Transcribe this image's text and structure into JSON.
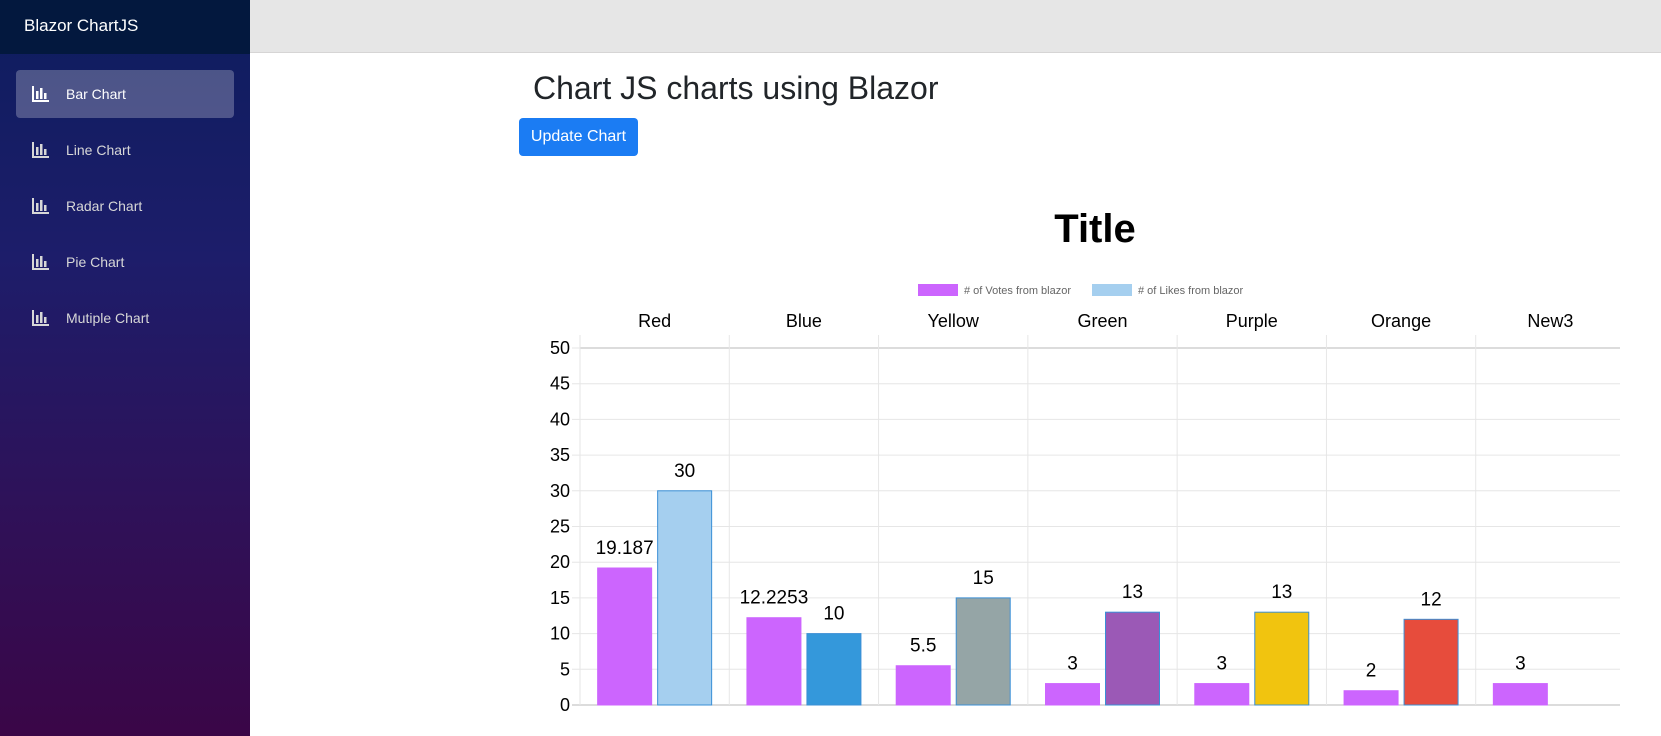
{
  "app": {
    "brand": "Blazor ChartJS"
  },
  "sidebar": {
    "items": [
      {
        "label": "Bar Chart",
        "icon": "bar-chart-icon",
        "active": true
      },
      {
        "label": "Line Chart",
        "icon": "bar-chart-icon",
        "active": false
      },
      {
        "label": "Radar Chart",
        "icon": "bar-chart-icon",
        "active": false
      },
      {
        "label": "Pie Chart",
        "icon": "bar-chart-icon",
        "active": false
      },
      {
        "label": "Mutiple Chart",
        "icon": "bar-chart-icon",
        "active": false
      }
    ]
  },
  "main": {
    "title": "Chart JS charts using Blazor",
    "update_button": "Update Chart"
  },
  "chart_data": {
    "type": "bar",
    "title": "Title",
    "categories": [
      "Red",
      "Blue",
      "Yellow",
      "Green",
      "Purple",
      "Orange",
      "New3"
    ],
    "ylim": [
      0,
      50
    ],
    "yticks": [
      0,
      5,
      10,
      15,
      20,
      25,
      30,
      35,
      40,
      45,
      50
    ],
    "x_axis_position": "top",
    "grid": true,
    "legend_position": "top",
    "series": [
      {
        "name": "# of Votes from blazor",
        "values": [
          19.187,
          12.2253,
          5.5,
          3,
          3,
          2,
          3
        ],
        "labels": [
          "19.187",
          "12.2253",
          "5.5",
          "3",
          "3",
          "2",
          "3"
        ],
        "color": "#cc65fe",
        "colors": [
          "#cc65fe",
          "#cc65fe",
          "#cc65fe",
          "#cc65fe",
          "#cc65fe",
          "#cc65fe",
          "#cc65fe"
        ]
      },
      {
        "name": "# of Likes from blazor",
        "values": [
          30,
          10,
          15,
          13,
          13,
          12,
          null
        ],
        "labels": [
          "30",
          "10",
          "15",
          "13",
          "13",
          "12",
          ""
        ],
        "color": "#a5cfef",
        "colors": [
          "#a5cfef",
          "#3498db",
          "#95a5a6",
          "#9b59b6",
          "#f1c40f",
          "#e74c3c",
          "#a5cfef"
        ]
      }
    ]
  }
}
